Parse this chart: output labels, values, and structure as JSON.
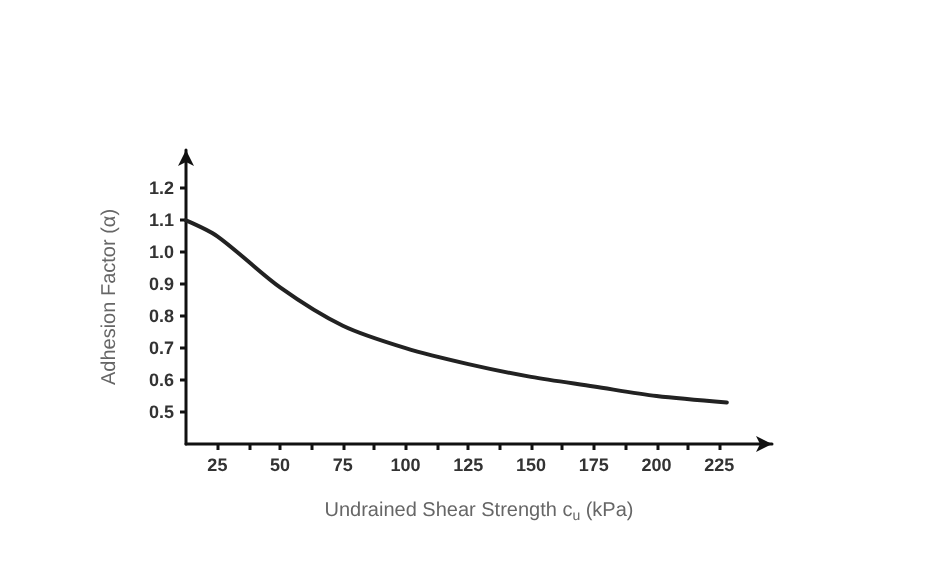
{
  "chart_data": {
    "type": "line",
    "xlabel": "Undrained Shear Strength c$_{u}$ (kPa)",
    "ylabel": "Adhesion Factor (α)",
    "x": [
      12.5,
      25,
      50,
      75,
      100,
      125,
      150,
      175,
      200,
      228
    ],
    "series": [
      {
        "color": "#222222",
        "values": [
          1.1,
          1.05,
          0.89,
          0.77,
          0.7,
          0.65,
          0.61,
          0.58,
          0.55,
          0.53
        ]
      }
    ],
    "xlim": [
      12.5,
      246
    ],
    "ylim": [
      0.4,
      1.32
    ],
    "xticks": [
      25,
      {
        "value": 37.5,
        "label": null
      },
      50,
      {
        "value": 62.5,
        "label": null
      },
      75,
      {
        "value": 87.5,
        "label": null
      },
      100,
      {
        "value": 112.5,
        "label": null
      },
      125,
      {
        "value": 137.5,
        "label": null
      },
      150,
      {
        "value": 162.5,
        "label": null
      },
      175,
      {
        "value": 187.5,
        "label": null
      },
      200,
      {
        "value": 212.5,
        "label": null
      },
      225
    ],
    "yticks": [
      0.5,
      0.6,
      0.7,
      0.8,
      0.9,
      {
        "value": 1,
        "label": "1.0"
      },
      1.1,
      1.2
    ],
    "grid": false,
    "marker": "none",
    "line_style": "solid"
  }
}
